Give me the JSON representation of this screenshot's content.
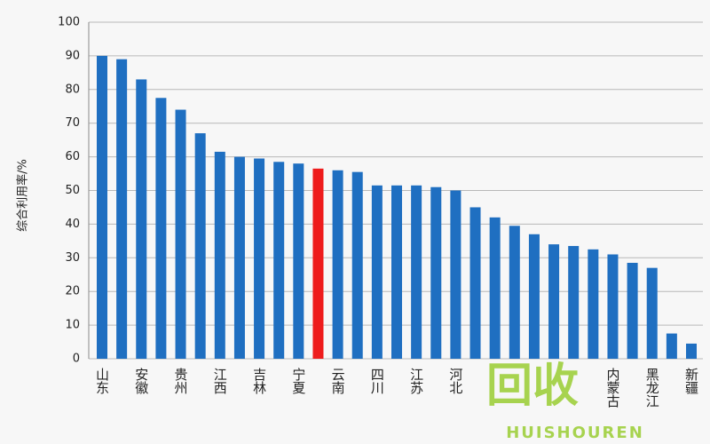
{
  "chart_data": {
    "type": "bar",
    "y_label": "综合利用率/%",
    "categories": [
      "山东",
      null,
      "安徽",
      null,
      "贵州",
      null,
      "江西",
      null,
      "吉林",
      null,
      "宁夏",
      null,
      "云南",
      null,
      "四川",
      null,
      "江苏",
      null,
      "河北",
      null,
      null,
      null,
      null,
      null,
      null,
      null,
      "内蒙古",
      null,
      "黑龙江",
      null,
      "新疆"
    ],
    "values": [
      90,
      89,
      83,
      77.5,
      74,
      67,
      61.5,
      60,
      59.5,
      58.5,
      58,
      56.5,
      56,
      55.5,
      51.5,
      51.5,
      51.5,
      51,
      50,
      45,
      42,
      39.5,
      37,
      34,
      33.5,
      32.5,
      31,
      28.5,
      27,
      7.5,
      4.5
    ],
    "colors": [
      "#1f6fc1",
      "#1f6fc1",
      "#1f6fc1",
      "#1f6fc1",
      "#1f6fc1",
      "#1f6fc1",
      "#1f6fc1",
      "#1f6fc1",
      "#1f6fc1",
      "#1f6fc1",
      "#1f6fc1",
      "#ee1c1c",
      "#1f6fc1",
      "#1f6fc1",
      "#1f6fc1",
      "#1f6fc1",
      "#1f6fc1",
      "#1f6fc1",
      "#1f6fc1",
      "#1f6fc1",
      "#1f6fc1",
      "#1f6fc1",
      "#1f6fc1",
      "#1f6fc1",
      "#1f6fc1",
      "#1f6fc1",
      "#1f6fc1",
      "#1f6fc1",
      "#1f6fc1",
      "#1f6fc1",
      "#1f6fc1"
    ],
    "ylim": [
      0,
      100
    ],
    "yticks": [
      0,
      10,
      20,
      30,
      40,
      50,
      60,
      70,
      80,
      90,
      100
    ],
    "grid": true,
    "watermark": {
      "text": "回收",
      "subtext": "HUISHOUREN"
    }
  }
}
